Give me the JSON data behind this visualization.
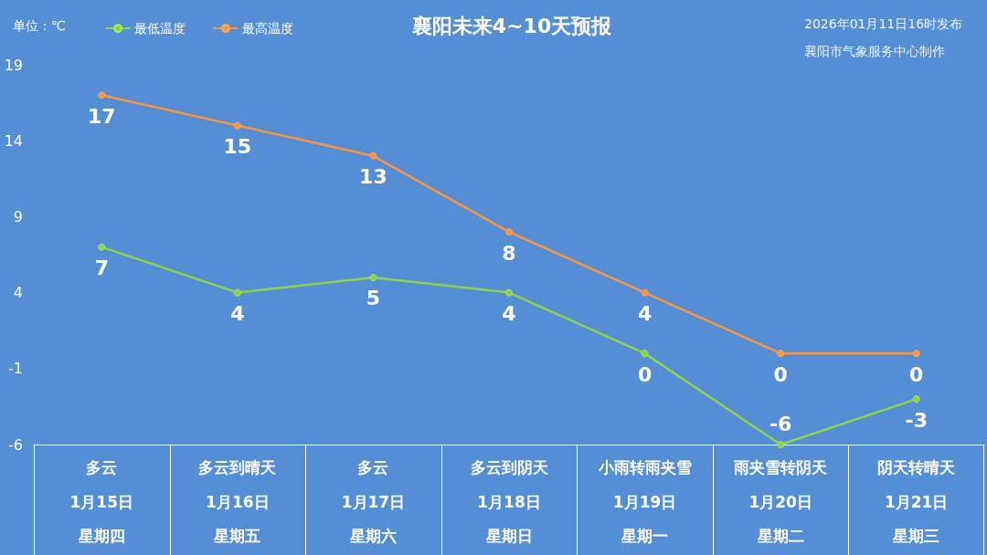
{
  "chart_data": {
    "type": "line",
    "title": "襄阳未来4~10天预报",
    "ylabel": "单位：℃",
    "annotations": [
      "2026年01月11日16时发布",
      "襄阳市气象服务中心制作",
      "多云",
      "多云到晴天",
      "多云",
      "多云到阴天",
      "小雨转雨夹雪",
      "雨夹雪转阴天",
      "阴天转晴天",
      "星期四",
      "星期五",
      "星期六",
      "星期日",
      "星期一",
      "星期二",
      "星期三"
    ],
    "categories": [
      "1月15日",
      "1月16日",
      "1月17日",
      "1月18日",
      "1月19日",
      "1月20日",
      "1月21日"
    ],
    "series": [
      {
        "name": "最低温度",
        "color": "#92d050",
        "values": [
          7,
          4,
          5,
          4,
          0,
          -6,
          -3
        ]
      },
      {
        "name": "最高温度",
        "color": "#f79646",
        "values": [
          17,
          15,
          13,
          8,
          4,
          0,
          0
        ]
      }
    ],
    "ylim": [
      -6,
      19
    ],
    "yticks": [
      -6,
      -1,
      4,
      9,
      14,
      19
    ],
    "legend": "top left",
    "marker": "circle",
    "data_labels": true
  }
}
